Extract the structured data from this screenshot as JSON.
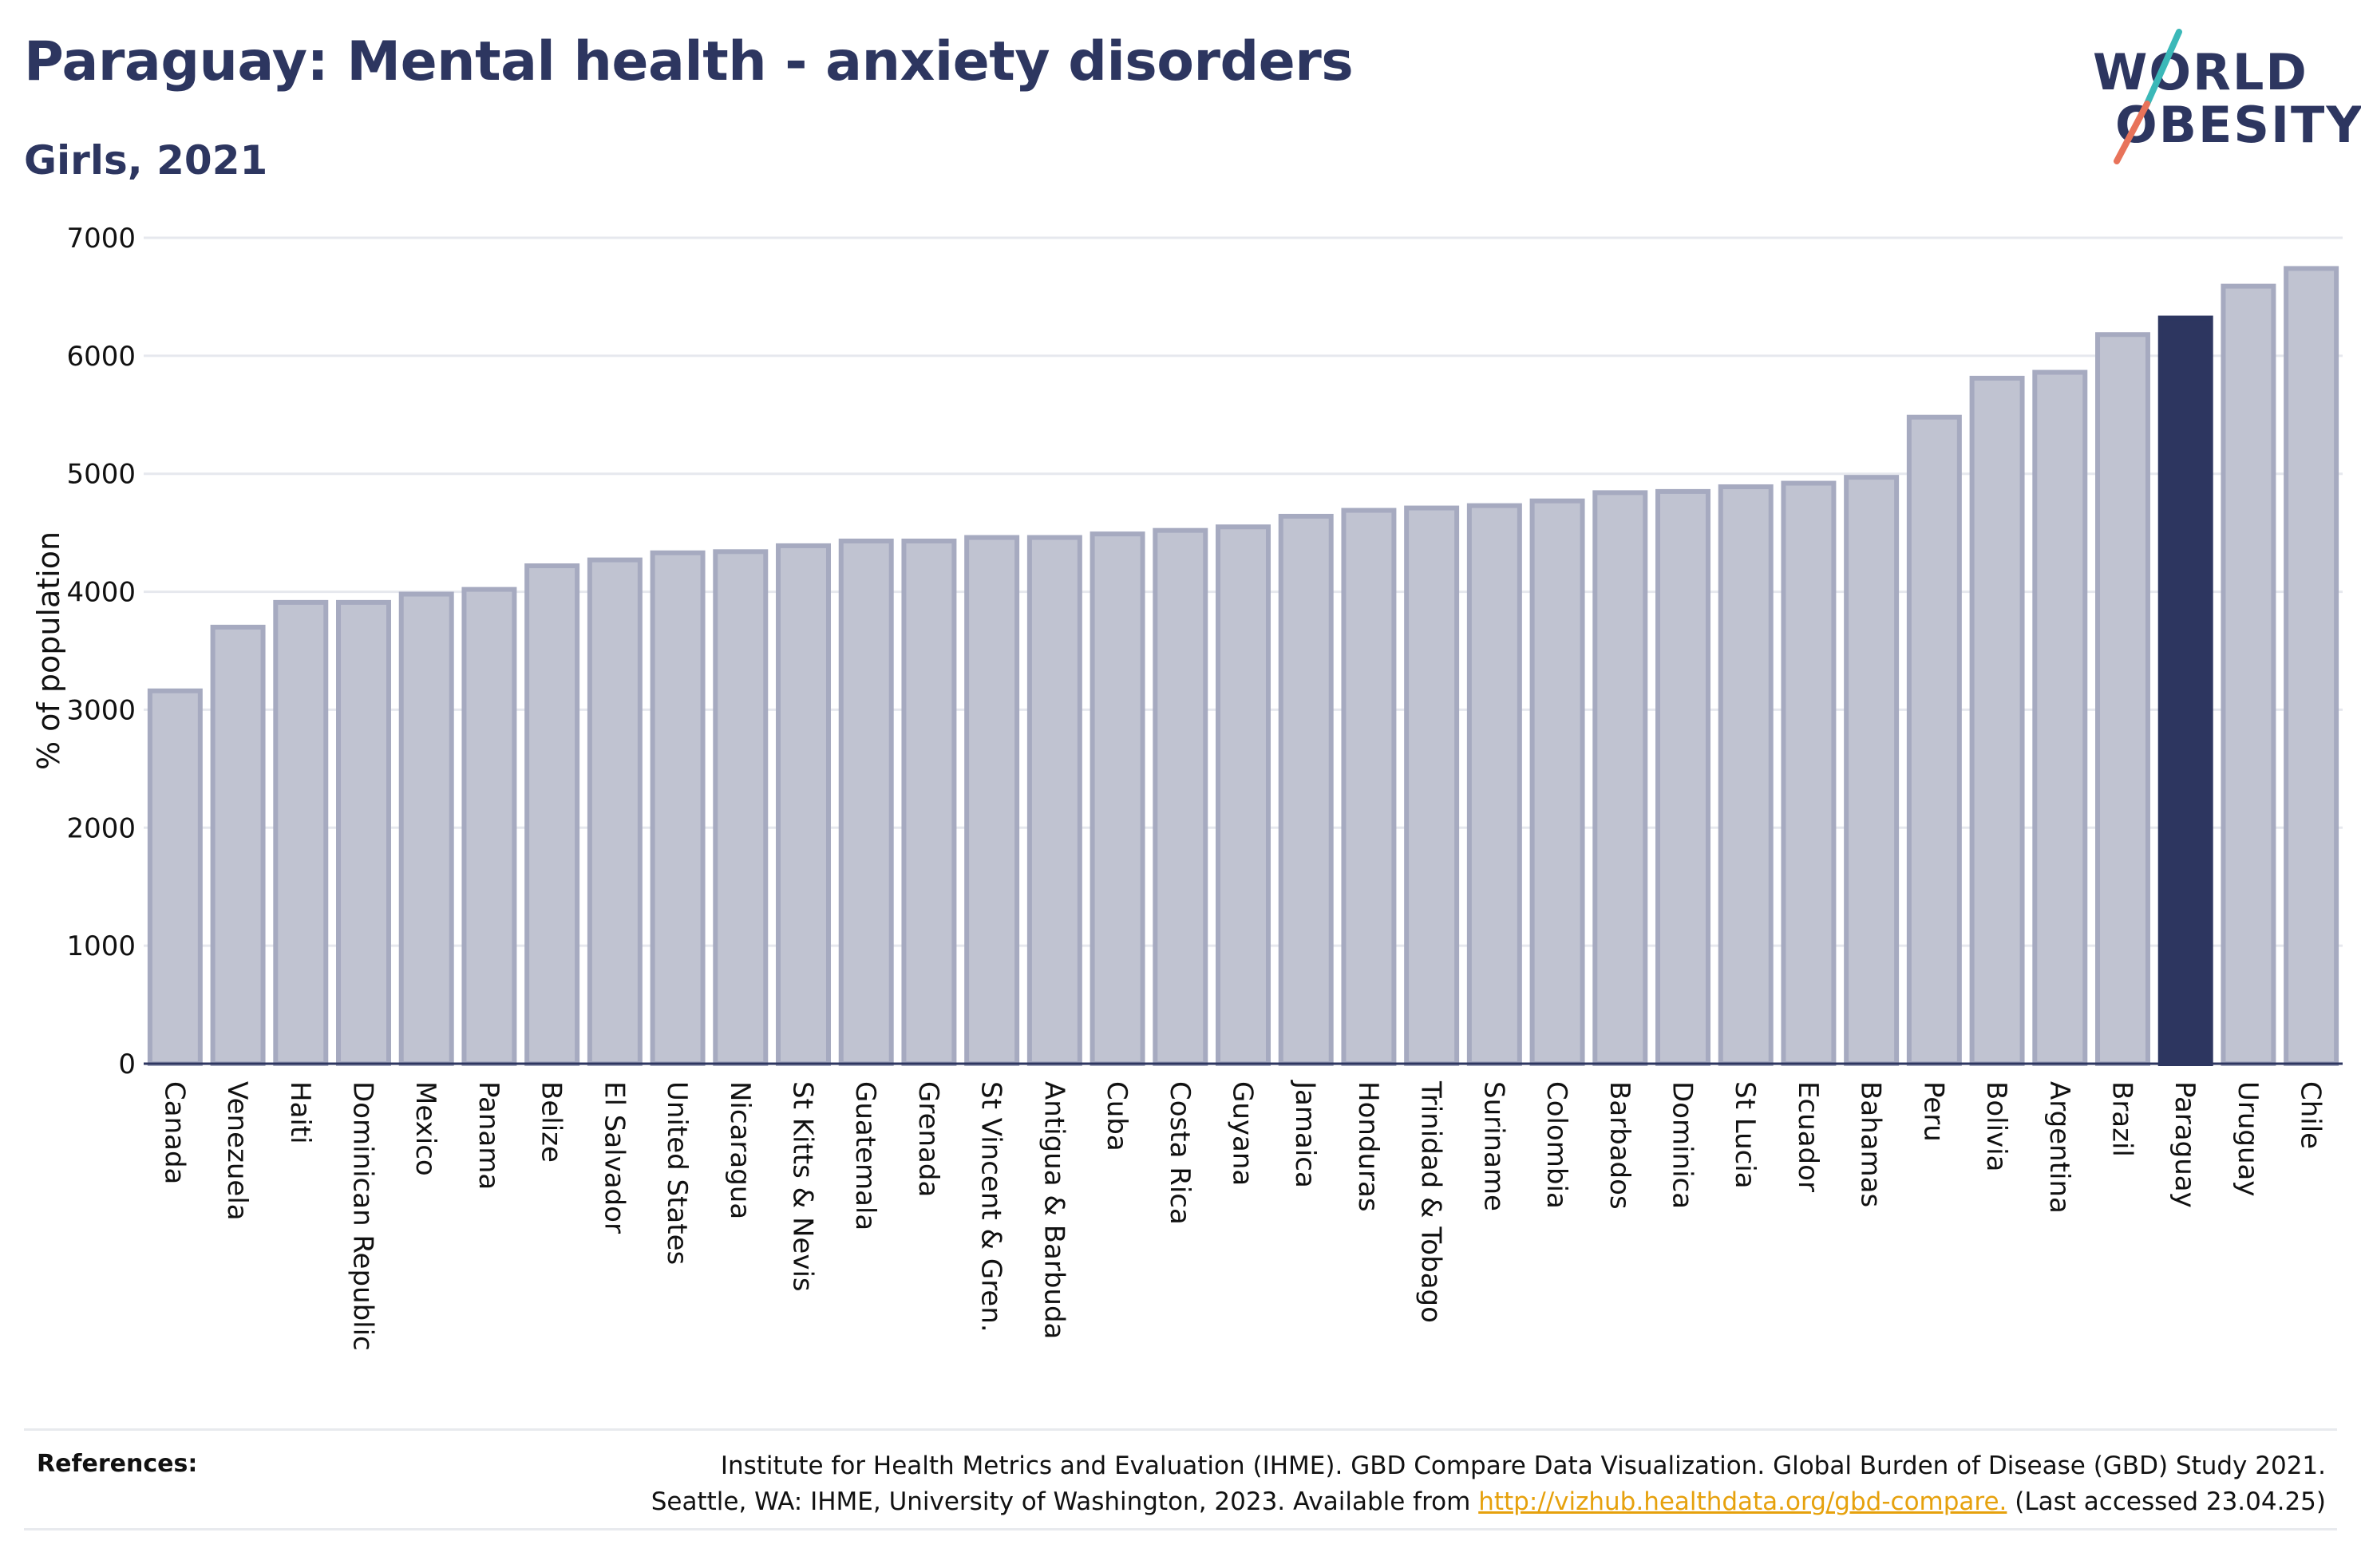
{
  "header": {
    "title": "Paraguay: Mental health - anxiety disorders",
    "subtitle": "Girls, 2021"
  },
  "logo": {
    "line1": "WORLD",
    "line2": "OBESITY",
    "accent_colors": [
      "#3bb8b8",
      "#e8735a"
    ]
  },
  "colors": {
    "bar_default_fill": "#c0c3d1",
    "bar_default_stroke": "#a6aac0",
    "bar_highlight": "#2d3660",
    "grid": "#e6e8ee",
    "axis": "#2d3660"
  },
  "chart_data": {
    "type": "bar",
    "title": "Paraguay: Mental health - anxiety disorders",
    "subtitle": "Girls, 2021",
    "ylabel": "% of population",
    "xlabel": "",
    "ylim": [
      0,
      7000
    ],
    "yticks": [
      0,
      1000,
      2000,
      3000,
      4000,
      5000,
      6000,
      7000
    ],
    "grid": true,
    "highlight": "Paraguay",
    "categories": [
      "Canada",
      "Venezuela",
      "Haiti",
      "Dominican Republic",
      "Mexico",
      "Panama",
      "Belize",
      "El Salvador",
      "United States",
      "Nicaragua",
      "St Kitts & Nevis",
      "Guatemala",
      "Grenada",
      "St Vincent & Gren.",
      "Antigua & Barbuda",
      "Cuba",
      "Costa Rica",
      "Guyana",
      "Jamaica",
      "Honduras",
      "Trinidad & Tobago",
      "Suriname",
      "Colombia",
      "Barbados",
      "Dominica",
      "St Lucia",
      "Ecuador",
      "Bahamas",
      "Peru",
      "Bolivia",
      "Argentina",
      "Brazil",
      "Paraguay",
      "Uruguay",
      "Chile"
    ],
    "values": [
      3160,
      3700,
      3910,
      3910,
      3980,
      4020,
      4220,
      4270,
      4330,
      4340,
      4390,
      4430,
      4430,
      4460,
      4460,
      4490,
      4520,
      4550,
      4640,
      4690,
      4710,
      4730,
      4770,
      4840,
      4850,
      4890,
      4920,
      4970,
      5480,
      5810,
      5860,
      6180,
      6320,
      6590,
      6740
    ]
  },
  "references": {
    "label": "References:",
    "line1": "Institute for Health Metrics and Evaluation (IHME). GBD Compare Data Visualization. Global Burden of Disease (GBD) Study 2021.",
    "line2_prefix": "Seattle, WA: IHME, University of Washington, 2023. Available from ",
    "link": "http://vizhub.healthdata.org/gbd-compare.",
    "line2_suffix": " (Last accessed 23.04.25)"
  }
}
